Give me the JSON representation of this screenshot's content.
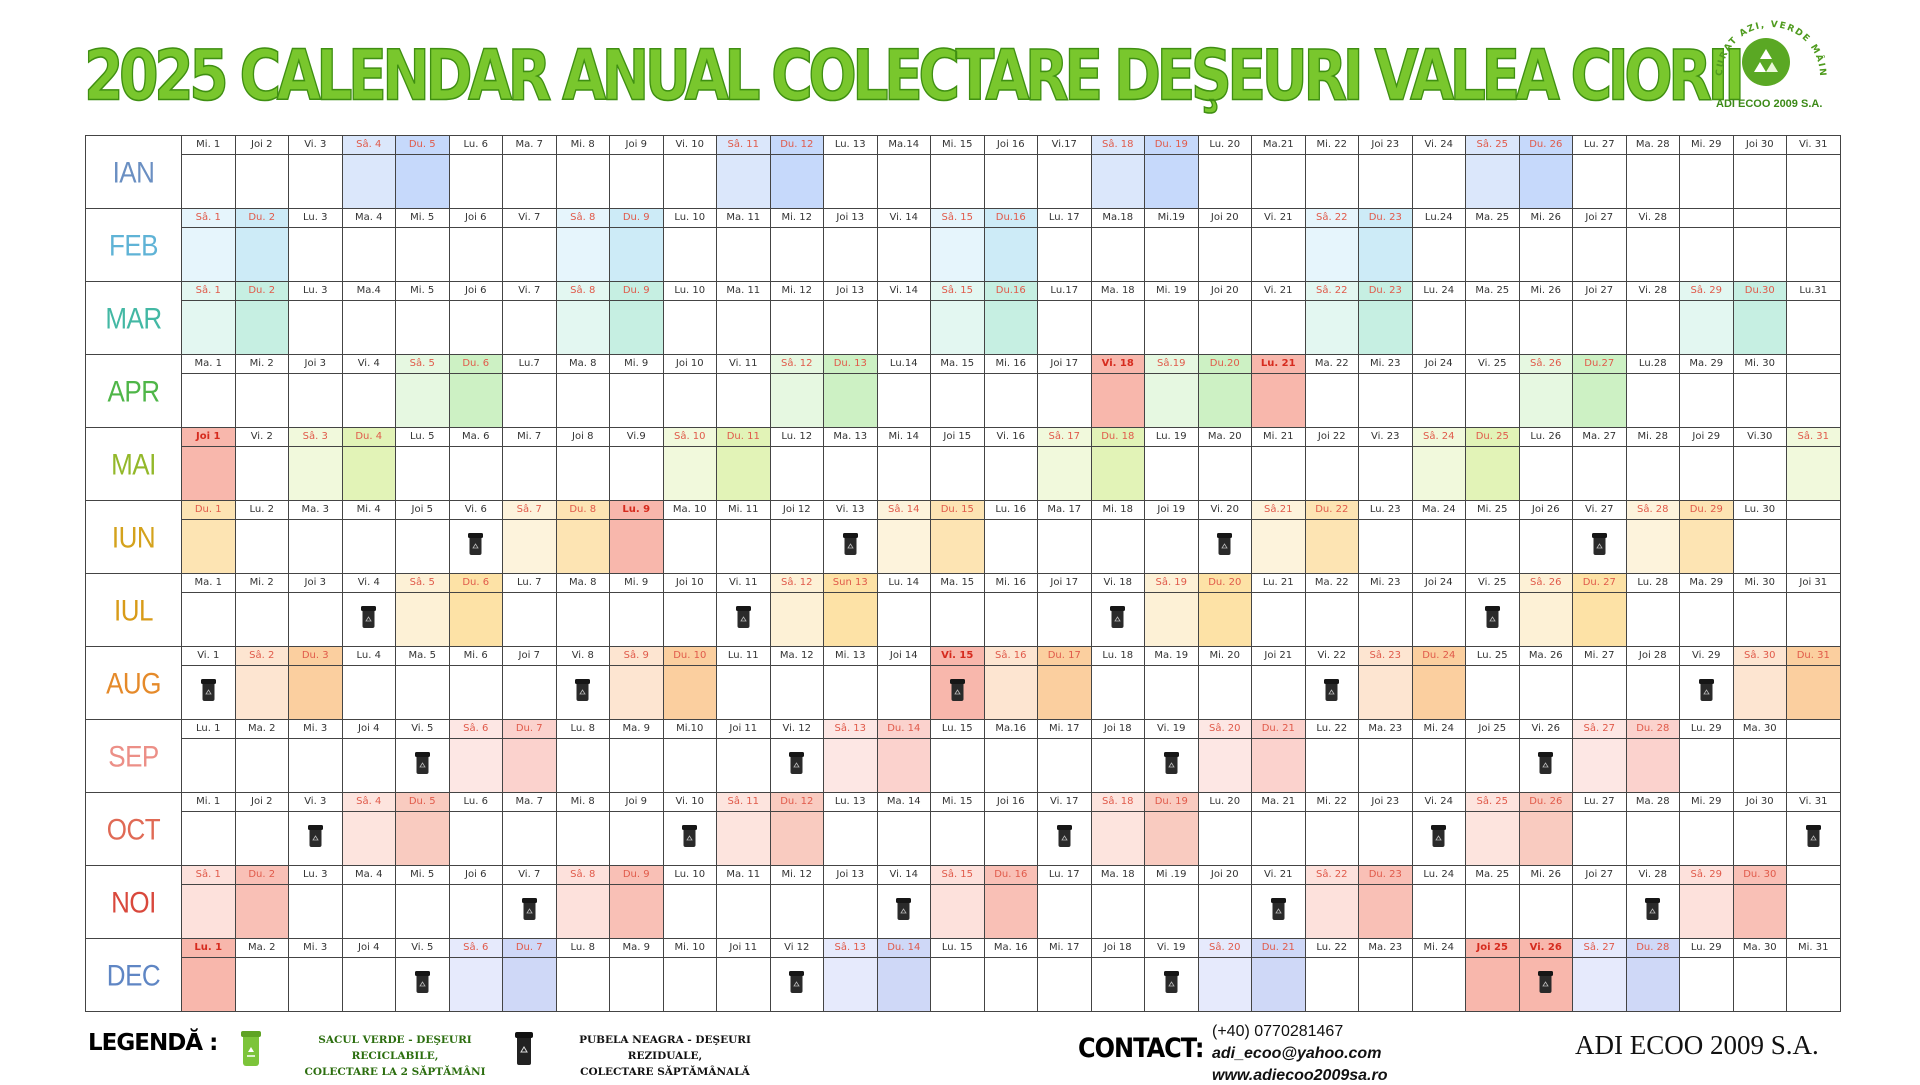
{
  "title": "2025 CALENDAR ANUAL COLECTARE DEŞEURI VALEA CIORII",
  "logo": {
    "arc_text": "CURAT AZI, VERDE MÂINE",
    "name": "ADI ECOO 2009 S.A."
  },
  "months": [
    {
      "name": "IAN",
      "color": "#6a8fc2",
      "fill": "#dbe7fb",
      "fill2": "#c6d9fb",
      "days": [
        "Mi. 1",
        "Joi 2",
        "Vi. 3",
        "Sâ. 4",
        "Du. 5",
        "Lu. 6",
        "Ma. 7",
        "Mi. 8",
        "Joi 9",
        "Vi. 10",
        "Sâ. 11",
        "Du. 12",
        "Lu. 13",
        "Ma.14",
        "Mi. 15",
        "Joi 16",
        "Vi.17",
        "Sâ. 18",
        "Du. 19",
        "Lu. 20",
        "Ma.21",
        "Mi. 22",
        "Joi 23",
        "Vi. 24",
        "Sâ. 25",
        "Du. 26",
        "Lu. 27",
        "Ma. 28",
        "Mi. 29",
        "Joi 30",
        "Vi. 31"
      ],
      "bins": []
    },
    {
      "name": "FEB",
      "color": "#5fb3d6",
      "fill": "#e6f5fc",
      "fill2": "#cdebf7",
      "days": [
        "Sâ. 1",
        "Du. 2",
        "Lu. 3",
        "Ma. 4",
        "Mi. 5",
        "Joi 6",
        "Vi. 7",
        "Sâ. 8",
        "Du. 9",
        "Lu. 10",
        "Ma. 11",
        "Mi. 12",
        "Joi 13",
        "Vi. 14",
        "Sâ. 15",
        "Du.16",
        "Lu. 17",
        "Ma.18",
        "Mi.19",
        "Joi 20",
        "Vi. 21",
        "Sâ. 22",
        "Du. 23",
        "Lu.24",
        "Ma. 25",
        "Mi. 26",
        "Joi 27",
        "Vi. 28"
      ],
      "bins": []
    },
    {
      "name": "MAR",
      "color": "#43b8a4",
      "fill": "#e3f7f1",
      "fill2": "#c6efe2",
      "days": [
        "Sâ. 1",
        "Du. 2",
        "Lu. 3",
        "Ma.4",
        "Mi. 5",
        "Joi 6",
        "Vi. 7",
        "Sâ. 8",
        "Du. 9",
        "Lu. 10",
        "Ma. 11",
        "Mi. 12",
        "Joi 13",
        "Vi. 14",
        "Sâ. 15",
        "Du.16",
        "Lu.17",
        "Ma. 18",
        "Mi. 19",
        "Joi 20",
        "Vi. 21",
        "Sâ. 22",
        "Du. 23",
        "Lu. 24",
        "Ma. 25",
        "Mi. 26",
        "Joi 27",
        "Vi. 28",
        "Sâ. 29",
        "Du.30",
        "Lu.31"
      ],
      "bins": []
    },
    {
      "name": "APR",
      "color": "#4fb648",
      "fill": "#e6f8e1",
      "fill2": "#cdf1c4",
      "days": [
        "Ma. 1",
        "Mi. 2",
        "Joi 3",
        "Vi. 4",
        "Sâ. 5",
        "Du. 6",
        "Lu.7",
        "Ma. 8",
        "Mi. 9",
        "Joi 10",
        "Vi. 11",
        "Sâ. 12",
        "Du. 13",
        "Lu.14",
        "Ma. 15",
        "Mi. 16",
        "Joi 17",
        "Vi. 18",
        "Sâ.19",
        "Du.20",
        "Lu. 21",
        "Ma. 22",
        "Mi. 23",
        "Joi 24",
        "Vi. 25",
        "Sâ. 26",
        "Du.27",
        "Lu.28",
        "Ma. 29",
        "Mi. 30"
      ],
      "holidays": [
        18,
        21
      ],
      "bins": []
    },
    {
      "name": "MAI",
      "color": "#93b82a",
      "fill": "#f1f9dc",
      "fill2": "#e2f3b7",
      "days": [
        "Joi 1",
        "Vi. 2",
        "Sâ. 3",
        "Du. 4",
        "Lu. 5",
        "Ma. 6",
        "Mi. 7",
        "Joi 8",
        "Vi.9",
        "Sâ. 10",
        "Du. 11",
        "Lu. 12",
        "Ma. 13",
        "Mi. 14",
        "Joi 15",
        "Vi. 16",
        "Sâ. 17",
        "Du. 18",
        "Lu. 19",
        "Ma. 20",
        "Mi. 21",
        "Joi 22",
        "Vi. 23",
        "Sâ. 24",
        "Du. 25",
        "Lu. 26",
        "Ma. 27",
        "Mi. 28",
        "Joi 29",
        "Vi.30",
        "Sâ. 31"
      ],
      "holidays": [
        1
      ],
      "bins": []
    },
    {
      "name": "IUN",
      "color": "#d4a21c",
      "fill": "#fdf3dc",
      "fill2": "#fde4b3",
      "days": [
        "Du. 1",
        "Lu. 2",
        "Ma. 3",
        "Mi. 4",
        "Joi 5",
        "Vi. 6",
        "Sâ. 7",
        "Du. 8",
        "Lu. 9",
        "Ma. 10",
        "Mi. 11",
        "Joi 12",
        "Vi. 13",
        "Sâ. 14",
        "Du. 15",
        "Lu. 16",
        "Ma. 17",
        "Mi. 18",
        "Joi 19",
        "Vi. 20",
        "Sâ.21",
        "Du. 22",
        "Lu. 23",
        "Ma. 24",
        "Mi. 25",
        "Joi 26",
        "Vi. 27",
        "Sâ. 28",
        "Du. 29",
        "Lu. 30"
      ],
      "holidays": [
        9
      ],
      "bins": [
        6,
        13,
        20,
        27
      ]
    },
    {
      "name": "IUL",
      "color": "#d89b18",
      "fill": "#fdf1d6",
      "fill2": "#fde2a6",
      "days": [
        "Ma. 1",
        "Mi. 2",
        "Joi 3",
        "Vi. 4",
        "Sâ. 5",
        "Du. 6",
        "Lu. 7",
        "Ma. 8",
        "Mi. 9",
        "Joi 10",
        "Vi. 11",
        "Sâ. 12",
        "Sun 13",
        "Lu. 14",
        "Ma. 15",
        "Mi. 16",
        "Joi 17",
        "Vi. 18",
        "Sâ. 19",
        "Du. 20",
        "Lu. 21",
        "Ma. 22",
        "Mi. 23",
        "Joi 24",
        "Vi. 25",
        "Sâ. 26",
        "Du. 27",
        "Lu. 28",
        "Ma. 29",
        "Mi. 30",
        "Joi 31"
      ],
      "bins": [
        4,
        11,
        18,
        25
      ]
    },
    {
      "name": "AUG",
      "color": "#e58a2a",
      "fill": "#fde5d1",
      "fill2": "#fbcf9f",
      "days": [
        "Vi. 1",
        "Sâ. 2",
        "Du. 3",
        "Lu. 4",
        "Ma. 5",
        "Mi. 6",
        "Joi 7",
        "Vi. 8",
        "Sâ. 9",
        "Du. 10",
        "Lu. 11",
        "Ma. 12",
        "Mi. 13",
        "Joi 14",
        "Vi. 15",
        "Sâ. 16",
        "Du. 17",
        "Lu. 18",
        "Ma. 19",
        "Mi. 20",
        "Joi 21",
        "Vi. 22",
        "Sâ. 23",
        "Du. 24",
        "Lu. 25",
        "Ma. 26",
        "Mi. 27",
        "Joi 28",
        "Vi. 29",
        "Sâ. 30",
        "Du. 31"
      ],
      "holidays": [
        15
      ],
      "bins": [
        1,
        8,
        15,
        22,
        29
      ]
    },
    {
      "name": "SEP",
      "color": "#ec8f87",
      "fill": "#fde7e4",
      "fill2": "#fbd2cd",
      "days": [
        "Lu. 1",
        "Ma. 2",
        "Mi. 3",
        "Joi 4",
        "Vi. 5",
        "Sâ. 6",
        "Du. 7",
        "Lu. 8",
        "Ma. 9",
        "Mi.10",
        "Joi 11",
        "Vi. 12",
        "Sâ. 13",
        "Du. 14",
        "Lu. 15",
        "Ma.16",
        "Mi. 17",
        "Joi 18",
        "Vi. 19",
        "Sâ. 20",
        "Du. 21",
        "Lu. 22",
        "Ma. 23",
        "Mi. 24",
        "Joi 25",
        "Vi. 26",
        "Sâ. 27",
        "Du. 28",
        "Lu. 29",
        "Ma. 30"
      ],
      "bins": [
        5,
        12,
        19,
        26
      ]
    },
    {
      "name": "OCT",
      "color": "#e06a55",
      "fill": "#fde4de",
      "fill2": "#f9cbc0",
      "days": [
        "Mi. 1",
        "Joi 2",
        "Vi. 3",
        "Sâ. 4",
        "Du. 5",
        "Lu. 6",
        "Ma. 7",
        "Mi. 8",
        "Joi 9",
        "Vi. 10",
        "Sâ. 11",
        "Du. 12",
        "Lu. 13",
        "Ma. 14",
        "Mi. 15",
        "Joi 16",
        "Vi. 17",
        "Sâ. 18",
        "Du. 19",
        "Lu. 20",
        "Ma. 21",
        "Mi. 22",
        "Joi 23",
        "Vi. 24",
        "Sâ. 25",
        "Du. 26",
        "Lu. 27",
        "Ma. 28",
        "Mi. 29",
        "Joi 30",
        "Vi. 31"
      ],
      "bins": [
        3,
        10,
        17,
        24,
        31
      ]
    },
    {
      "name": "NOI",
      "color": "#d9483c",
      "fill": "#fde1dc",
      "fill2": "#f9c0b6",
      "days": [
        "Sâ. 1",
        "Du. 2",
        "Lu. 3",
        "Ma. 4",
        "Mi. 5",
        "Joi 6",
        "Vi. 7",
        "Sâ. 8",
        "Du. 9",
        "Lu. 10",
        "Ma. 11",
        "Mi. 12",
        "Joi 13",
        "Vi. 14",
        "Sâ. 15",
        "Du. 16",
        "Lu. 17",
        "Ma. 18",
        "Mi .19",
        "Joi 20",
        "Vi. 21",
        "Sâ. 22",
        "Du. 23",
        "Lu. 24",
        "Ma. 25",
        "Mi. 26",
        "Joi 27",
        "Vi. 28",
        "Sâ. 29",
        "Du. 30"
      ],
      "bins": [
        7,
        14,
        21,
        28
      ]
    },
    {
      "name": "DEC",
      "color": "#5f86c4",
      "fill": "#e6eafc",
      "fill2": "#cfd8f7",
      "days": [
        "Lu. 1",
        "Ma. 2",
        "Mi. 3",
        "Joi 4",
        "Vi. 5",
        "Sâ. 6",
        "Du. 7",
        "Lu. 8",
        "Ma. 9",
        "Mi. 10",
        "Joi 11",
        "Vi 12",
        "Sâ. 13",
        "Du. 14",
        "Lu. 15",
        "Ma. 16",
        "Mi. 17",
        "Joi 18",
        "Vi. 19",
        "Sâ. 20",
        "Du. 21",
        "Lu. 22",
        "Ma. 23",
        "Mi. 24",
        "Joi 25",
        "Vi. 26",
        "Sâ. 27",
        "Du. 28",
        "Lu. 29",
        "Ma. 30",
        "Mi. 31"
      ],
      "holidays": [
        1,
        25,
        26
      ],
      "bins": [
        5,
        12,
        19,
        26
      ]
    }
  ],
  "colors": {
    "holiday_fill": "#f8b7ac",
    "holiday_text": "#d62b1e",
    "weekend_text": "#e05a4a",
    "grid": "#444444",
    "title_green": "#79c72d"
  },
  "legend": {
    "title": "LEGENDĂ :",
    "green_bag_line1": "SACUL VERDE - DEŞEURI RECICLABILE,",
    "green_bag_line2": "COLECTARE LA 2 SĂPTĂMÂNI",
    "black_bin_line1": "PUBELA NEAGRA - DEŞEURI REZIDUALE,",
    "black_bin_line2": "COLECTARE SĂPTĂMÂNALĂ",
    "icons": [
      "green-bag-icon",
      "black-bin-icon"
    ]
  },
  "contact": {
    "title": "CONTACT:",
    "phone": "(+40) 0770281467",
    "email": "adi_ecoo@yahoo.com",
    "web": "www.adiecoo2009sa.ro"
  },
  "footer_brand": "ADI ECOO 2009 S.A."
}
